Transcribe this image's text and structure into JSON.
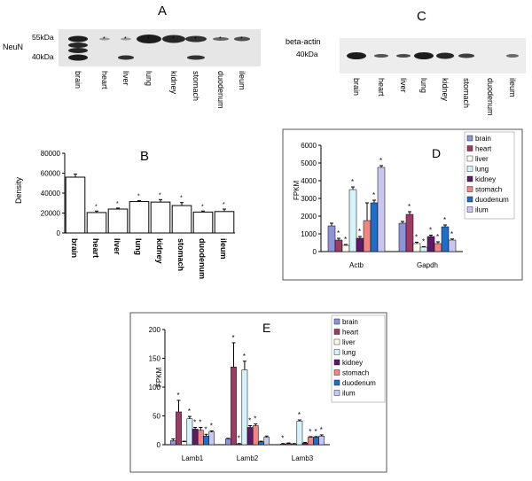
{
  "panels": {
    "A": {
      "letter": "A",
      "marker": "NeuN",
      "size_markers": [
        "55kDa",
        "40kDa"
      ],
      "lanes": [
        "brain",
        "heart",
        "liver",
        "lung",
        "kidney",
        "stomach",
        "duodenum",
        "ileum"
      ],
      "stars": [
        "*",
        "*",
        "*",
        "*",
        "*",
        "*",
        "*"
      ]
    },
    "C": {
      "letter": "C",
      "marker": "beta-actin",
      "size_marker": "40kDa",
      "lanes": [
        "brain",
        "heart",
        "liver",
        "lung",
        "kidney",
        "stomach",
        "duodenum",
        "ileum"
      ]
    },
    "B": {
      "letter": "B"
    },
    "D": {
      "letter": "D"
    },
    "E": {
      "letter": "E"
    }
  },
  "colors": {
    "brain": "#8f94d8",
    "heart": "#9c3b64",
    "liver": "#fffff0",
    "lung": "#d6f3fb",
    "kidney": "#5e1a69",
    "stomach": "#f0867f",
    "duodenum": "#1f6ec7",
    "ileum": "#c9c6ef"
  },
  "chart_data": [
    {
      "panel": "B",
      "type": "bar",
      "categories": [
        "brain",
        "heart",
        "liver",
        "lung",
        "kidney",
        "stomach",
        "duodenum",
        "ileum"
      ],
      "values": [
        56000,
        20500,
        24000,
        31500,
        31000,
        27500,
        21000,
        21500
      ],
      "errors": [
        3000,
        1500,
        1000,
        1000,
        2500,
        3000,
        1000,
        2500
      ],
      "significance": [
        "",
        "*",
        "*",
        "*",
        "*",
        "*",
        "*",
        "*"
      ],
      "ylabel": "Density",
      "ylim": [
        0,
        80000
      ],
      "yticks": [
        "0",
        "20000",
        "40000",
        "60000",
        "80000"
      ],
      "grid": false
    },
    {
      "panel": "D",
      "type": "bar",
      "categories": [
        "Actb",
        "Gapdh"
      ],
      "series": [
        {
          "name": "brain",
          "values": [
            1450,
            1600
          ],
          "errors": [
            150,
            100
          ],
          "significance": [
            "",
            ""
          ]
        },
        {
          "name": "heart",
          "values": [
            650,
            2100
          ],
          "errors": [
            100,
            150
          ],
          "significance": [
            "*",
            "*"
          ]
        },
        {
          "name": "liver",
          "values": [
            350,
            450
          ],
          "errors": [
            50,
            80
          ],
          "significance": [
            "*",
            "*"
          ]
        },
        {
          "name": "lung",
          "values": [
            3500,
            250
          ],
          "errors": [
            150,
            30
          ],
          "significance": [
            "*",
            "*"
          ]
        },
        {
          "name": "kidney",
          "values": [
            750,
            850
          ],
          "errors": [
            100,
            80
          ],
          "significance": [
            "*",
            "*"
          ]
        },
        {
          "name": "stomach",
          "values": [
            1750,
            450
          ],
          "errors": [
            1000,
            100
          ],
          "significance": [
            "",
            "*"
          ]
        },
        {
          "name": "duodenum",
          "values": [
            2750,
            1400
          ],
          "errors": [
            150,
            100
          ],
          "significance": [
            "*",
            "*"
          ]
        },
        {
          "name": "ilum",
          "values": [
            4750,
            650
          ],
          "errors": [
            100,
            60
          ],
          "significance": [
            "*",
            "*"
          ]
        }
      ],
      "ylabel": "FPKM",
      "ylim": [
        0,
        6000
      ],
      "yticks": [
        "0",
        "1000",
        "2000",
        "3000",
        "4000",
        "5000",
        "6000"
      ],
      "legend": "right",
      "grid": false
    },
    {
      "panel": "E",
      "type": "bar",
      "categories": [
        "Lamb1",
        "Lamb2",
        "Lamb3"
      ],
      "series": [
        {
          "name": "brain",
          "values": [
            7,
            10,
            1
          ],
          "errors": [
            3,
            1,
            1
          ],
          "significance": [
            "",
            "",
            "*"
          ]
        },
        {
          "name": "heart",
          "values": [
            57,
            135,
            2
          ],
          "errors": [
            20,
            42,
            1
          ],
          "significance": [
            "*",
            "*",
            ""
          ]
        },
        {
          "name": "liver",
          "values": [
            5,
            1,
            1
          ],
          "errors": [
            1,
            1,
            1
          ],
          "significance": [
            "",
            "*",
            ""
          ]
        },
        {
          "name": "lung",
          "values": [
            45,
            130,
            41
          ],
          "errors": [
            4,
            15,
            2
          ],
          "significance": [
            "*",
            "*",
            "*"
          ]
        },
        {
          "name": "kidney",
          "values": [
            27,
            30,
            3
          ],
          "errors": [
            3,
            3,
            1
          ],
          "significance": [
            "*",
            "*",
            ""
          ]
        },
        {
          "name": "stomach",
          "values": [
            25,
            33,
            13
          ],
          "errors": [
            5,
            3,
            1
          ],
          "significance": [
            "*",
            "*",
            "*"
          ]
        },
        {
          "name": "duodenum",
          "values": [
            15,
            5,
            13
          ],
          "errors": [
            3,
            1,
            1
          ],
          "significance": [
            "*",
            "",
            "*"
          ]
        },
        {
          "name": "ilum",
          "values": [
            22,
            13,
            15
          ],
          "errors": [
            2,
            2,
            2
          ],
          "significance": [
            "*",
            "",
            "*"
          ]
        }
      ],
      "ylabel": "FPKM",
      "ylim": [
        0,
        200
      ],
      "yticks": [
        "0",
        "50",
        "100",
        "150",
        "200"
      ],
      "legend": "right",
      "grid": false
    }
  ]
}
